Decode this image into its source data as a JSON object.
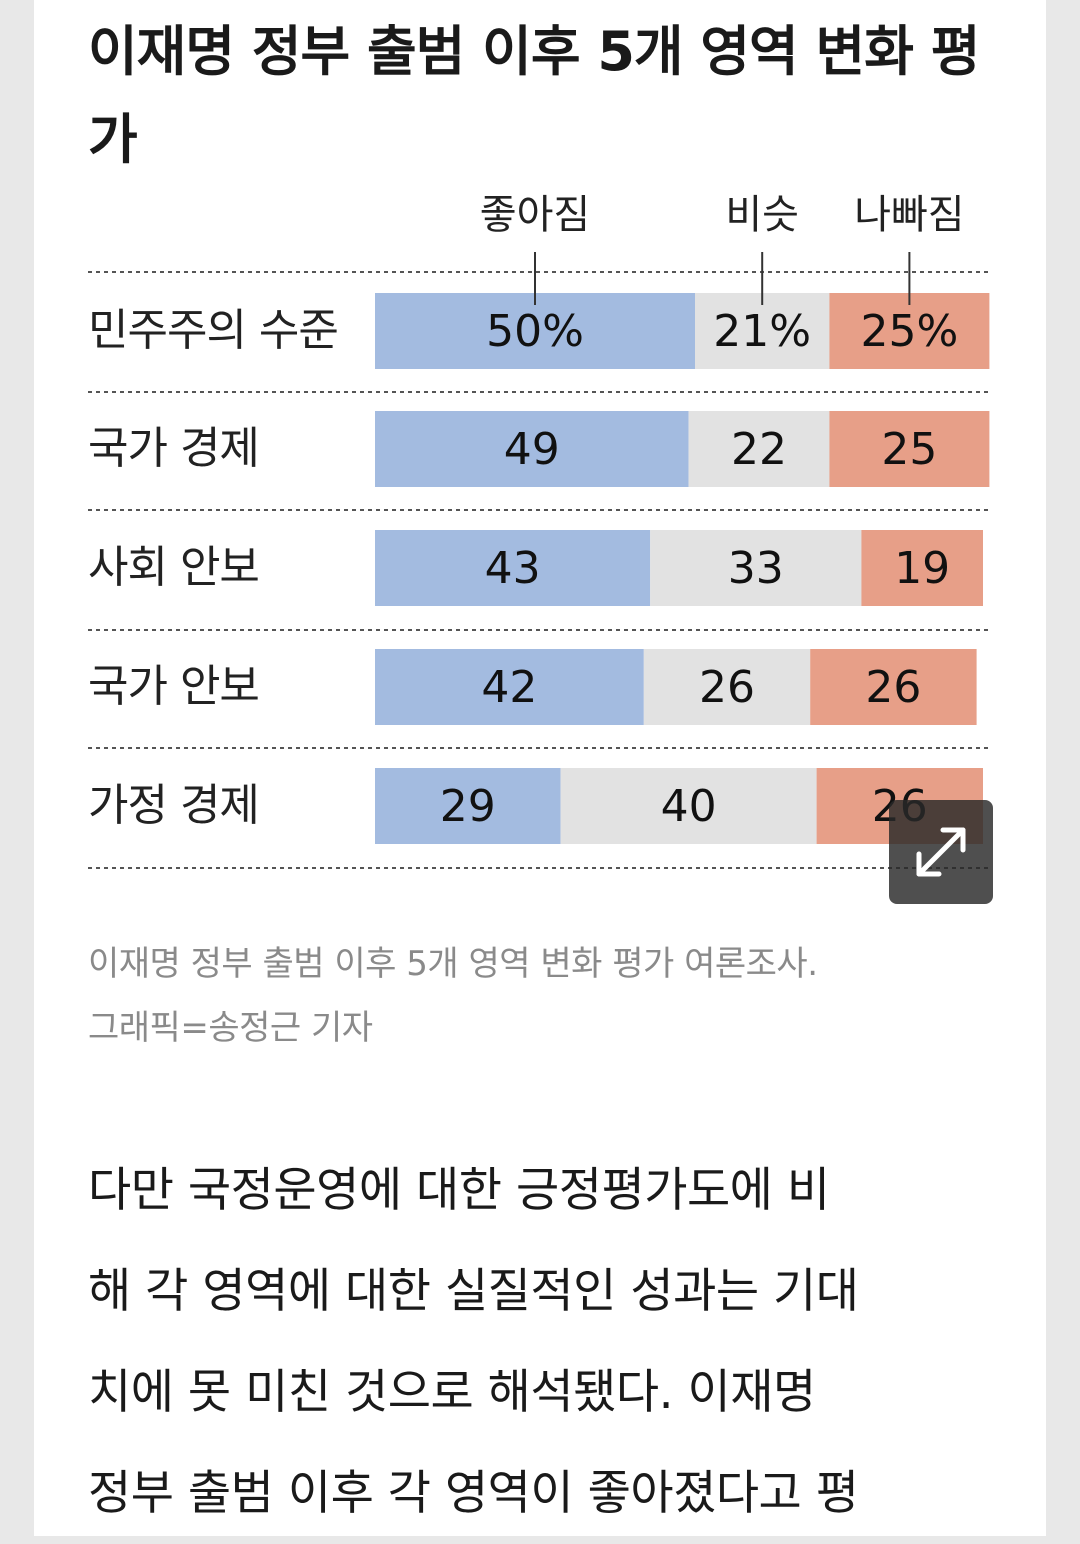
{
  "chart_data": {
    "type": "bar",
    "stacked": true,
    "orientation": "horizontal",
    "title": "이재명 정부 출범 이후 5개 영역 변화 평가",
    "categories": [
      "민주주의 수준",
      "국가 경제",
      "사회 안보",
      "국가 안보",
      "가정 경제"
    ],
    "series": [
      {
        "name": "좋아짐",
        "values": [
          50,
          49,
          43,
          42,
          29
        ],
        "labels": [
          "50%",
          "49",
          "43",
          "42",
          "29"
        ],
        "color": "#a3bbe0"
      },
      {
        "name": "비슷",
        "values": [
          21,
          22,
          33,
          26,
          40
        ],
        "labels": [
          "21%",
          "22",
          "33",
          "26",
          "40"
        ],
        "color": "#e2e2e2"
      },
      {
        "name": "나빠짐",
        "values": [
          25,
          25,
          19,
          26,
          26
        ],
        "labels": [
          "25%",
          "25",
          "19",
          "26",
          "26"
        ],
        "color": "#e79f88"
      }
    ],
    "unit": "%",
    "grid": "dashed row separators"
  },
  "caption": {
    "line1": "이재명 정부 출범 이후 5개 영역 변화 평가 여론조사.",
    "line2": "그래픽=송정근 기자"
  },
  "body": {
    "lines": [
      "다만 국정운영에 대한 긍정평가도에 비",
      "해 각 영역에 대한 실질적인 성과는 기대",
      "치에 못 미친 것으로 해석됐다. 이재명",
      "정부 출범 이후 각 영역이 좋아졌다고 평"
    ]
  },
  "expand_button": {
    "icon": "expand-arrows-icon"
  }
}
